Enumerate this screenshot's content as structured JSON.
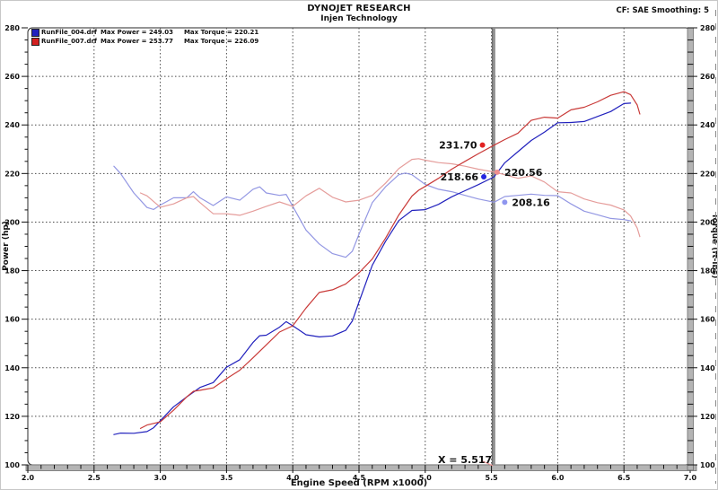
{
  "header": {
    "title": "DYNOJET RESEARCH",
    "subtitle": "Injen Technology",
    "settings": "CF: SAE  Smoothing: 5"
  },
  "legend": [
    {
      "file": "RunFile_004.drf",
      "max_power": "Max Power = 249.03",
      "max_torque": "Max Torque = 220.21",
      "color": "#2121bd"
    },
    {
      "file": "RunFile_007.drf",
      "max_power": "Max Power = 253.77",
      "max_torque": "Max Torque = 226.09",
      "color": "#d22020"
    }
  ],
  "cursor": {
    "x": 5.517,
    "label": "X = 5.517",
    "callout_color": "#f09090",
    "line_color": "#8f8f8f"
  },
  "chart_data": {
    "type": "line",
    "title": "DYNOJET RESEARCH",
    "subtitle": "Injen Technology",
    "xlabel": "Engine Speed (RPM x1000)",
    "ylabel_left": "Power (hp)",
    "ylabel_right": "Torque (ft-lbs)",
    "xlim": [
      2.0,
      7.0
    ],
    "ylim": [
      100,
      280
    ],
    "x_ticks": [
      2.0,
      2.5,
      3.0,
      3.5,
      4.0,
      4.5,
      5.0,
      5.5,
      6.0,
      6.5,
      7.0
    ],
    "y_ticks": [
      100,
      120,
      140,
      160,
      180,
      200,
      220,
      240,
      260,
      280
    ],
    "x_minor_step": 0.1,
    "y_minor_step": 5,
    "grid": "dotted",
    "legend_position": "top-left",
    "cursor_x": 5.517,
    "series": [
      {
        "name": "RunFile_004.drf Power (hp)",
        "axis": "left",
        "color": "#2121bd",
        "width": 1.2,
        "points": [
          [
            2.65,
            112.5
          ],
          [
            2.7,
            113.1
          ],
          [
            2.8,
            113.0
          ],
          [
            2.9,
            113.7
          ],
          [
            2.95,
            115.3
          ],
          [
            3.0,
            118.2
          ],
          [
            3.1,
            123.9
          ],
          [
            3.2,
            128.0
          ],
          [
            3.3,
            131.9
          ],
          [
            3.4,
            133.9
          ],
          [
            3.5,
            140.2
          ],
          [
            3.6,
            143.3
          ],
          [
            3.7,
            150.4
          ],
          [
            3.75,
            153.2
          ],
          [
            3.8,
            153.4
          ],
          [
            3.9,
            156.7
          ],
          [
            3.95,
            159.0
          ],
          [
            4.0,
            157.3
          ],
          [
            4.1,
            153.6
          ],
          [
            4.2,
            152.7
          ],
          [
            4.3,
            153.1
          ],
          [
            4.4,
            155.4
          ],
          [
            4.45,
            159.3
          ],
          [
            4.5,
            167.1
          ],
          [
            4.6,
            182.2
          ],
          [
            4.7,
            192.0
          ],
          [
            4.8,
            200.6
          ],
          [
            4.9,
            204.8
          ],
          [
            5.0,
            205.1
          ],
          [
            5.1,
            207.3
          ],
          [
            5.2,
            210.4
          ],
          [
            5.3,
            212.9
          ],
          [
            5.4,
            215.4
          ],
          [
            5.5,
            218.1
          ],
          [
            5.52,
            218.7
          ],
          [
            5.6,
            224.4
          ],
          [
            5.7,
            229.0
          ],
          [
            5.8,
            233.6
          ],
          [
            5.9,
            237.0
          ],
          [
            6.0,
            240.9
          ],
          [
            6.1,
            241.0
          ],
          [
            6.2,
            241.4
          ],
          [
            6.3,
            243.5
          ],
          [
            6.4,
            245.5
          ],
          [
            6.5,
            248.8
          ],
          [
            6.55,
            249.0
          ]
        ]
      },
      {
        "name": "RunFile_004.drf Torque (ft-lbs)",
        "axis": "right",
        "color": "#9397e3",
        "width": 1.2,
        "points": [
          [
            2.65,
            223.0
          ],
          [
            2.7,
            220.0
          ],
          [
            2.8,
            212.0
          ],
          [
            2.9,
            206.0
          ],
          [
            2.95,
            205.2
          ],
          [
            3.0,
            207.0
          ],
          [
            3.1,
            210.0
          ],
          [
            3.2,
            210.0
          ],
          [
            3.25,
            212.5
          ],
          [
            3.3,
            210.0
          ],
          [
            3.4,
            206.8
          ],
          [
            3.5,
            210.4
          ],
          [
            3.6,
            209.0
          ],
          [
            3.7,
            213.5
          ],
          [
            3.75,
            214.5
          ],
          [
            3.8,
            212.0
          ],
          [
            3.9,
            211.0
          ],
          [
            3.95,
            211.4
          ],
          [
            4.0,
            206.5
          ],
          [
            4.1,
            196.7
          ],
          [
            4.2,
            191.0
          ],
          [
            4.3,
            187.0
          ],
          [
            4.4,
            185.5
          ],
          [
            4.45,
            188.0
          ],
          [
            4.5,
            195.0
          ],
          [
            4.6,
            208.0
          ],
          [
            4.7,
            214.5
          ],
          [
            4.8,
            219.5
          ],
          [
            4.85,
            220.2
          ],
          [
            4.9,
            219.5
          ],
          [
            5.0,
            215.5
          ],
          [
            5.1,
            213.5
          ],
          [
            5.2,
            212.5
          ],
          [
            5.3,
            211.0
          ],
          [
            5.4,
            209.5
          ],
          [
            5.52,
            208.2
          ],
          [
            5.6,
            210.5
          ],
          [
            5.7,
            211.0
          ],
          [
            5.8,
            211.5
          ],
          [
            5.9,
            211.0
          ],
          [
            6.0,
            210.9
          ],
          [
            6.1,
            207.5
          ],
          [
            6.2,
            204.5
          ],
          [
            6.3,
            203.0
          ],
          [
            6.4,
            201.5
          ],
          [
            6.5,
            201.0
          ],
          [
            6.55,
            200.5
          ]
        ]
      },
      {
        "name": "RunFile_007.drf Power (hp)",
        "axis": "left",
        "color": "#c93a38",
        "width": 1.2,
        "points": [
          [
            2.85,
            115.0
          ],
          [
            2.9,
            116.4
          ],
          [
            3.0,
            117.7
          ],
          [
            3.1,
            122.5
          ],
          [
            3.2,
            128.0
          ],
          [
            3.25,
            130.3
          ],
          [
            3.3,
            130.7
          ],
          [
            3.4,
            131.7
          ],
          [
            3.5,
            135.5
          ],
          [
            3.6,
            139.0
          ],
          [
            3.7,
            144.1
          ],
          [
            3.8,
            149.4
          ],
          [
            3.9,
            154.7
          ],
          [
            4.0,
            157.3
          ],
          [
            4.1,
            164.6
          ],
          [
            4.2,
            171.0
          ],
          [
            4.3,
            172.1
          ],
          [
            4.4,
            174.5
          ],
          [
            4.5,
            179.1
          ],
          [
            4.6,
            184.8
          ],
          [
            4.7,
            193.3
          ],
          [
            4.8,
            202.9
          ],
          [
            4.9,
            210.7
          ],
          [
            4.95,
            213.1
          ],
          [
            5.0,
            214.7
          ],
          [
            5.1,
            218.0
          ],
          [
            5.2,
            221.8
          ],
          [
            5.3,
            225.0
          ],
          [
            5.4,
            228.1
          ],
          [
            5.52,
            231.7
          ],
          [
            5.6,
            234.0
          ],
          [
            5.7,
            236.6
          ],
          [
            5.8,
            241.9
          ],
          [
            5.9,
            243.2
          ],
          [
            6.0,
            242.8
          ],
          [
            6.1,
            246.2
          ],
          [
            6.2,
            247.3
          ],
          [
            6.3,
            249.5
          ],
          [
            6.4,
            252.2
          ],
          [
            6.5,
            253.7
          ],
          [
            6.55,
            252.5
          ],
          [
            6.6,
            248.2
          ],
          [
            6.62,
            244.5
          ]
        ]
      },
      {
        "name": "RunFile_007.drf Torque (ft-lbs)",
        "axis": "right",
        "color": "#e59d9b",
        "width": 1.2,
        "points": [
          [
            2.85,
            212.0
          ],
          [
            2.9,
            210.8
          ],
          [
            3.0,
            206.1
          ],
          [
            3.1,
            207.5
          ],
          [
            3.2,
            210.0
          ],
          [
            3.25,
            210.5
          ],
          [
            3.3,
            208.0
          ],
          [
            3.4,
            203.4
          ],
          [
            3.5,
            203.4
          ],
          [
            3.6,
            202.8
          ],
          [
            3.7,
            204.5
          ],
          [
            3.8,
            206.5
          ],
          [
            3.9,
            208.3
          ],
          [
            4.0,
            206.5
          ],
          [
            4.1,
            210.8
          ],
          [
            4.2,
            213.9
          ],
          [
            4.3,
            210.2
          ],
          [
            4.4,
            208.3
          ],
          [
            4.5,
            209.0
          ],
          [
            4.6,
            211.0
          ],
          [
            4.7,
            216.0
          ],
          [
            4.8,
            222.0
          ],
          [
            4.9,
            225.8
          ],
          [
            4.95,
            226.1
          ],
          [
            5.0,
            225.5
          ],
          [
            5.1,
            224.5
          ],
          [
            5.2,
            224.0
          ],
          [
            5.3,
            223.0
          ],
          [
            5.4,
            221.8
          ],
          [
            5.52,
            220.6
          ],
          [
            5.6,
            219.5
          ],
          [
            5.7,
            218.0
          ],
          [
            5.8,
            219.0
          ],
          [
            5.9,
            216.5
          ],
          [
            6.0,
            212.5
          ],
          [
            6.1,
            212.0
          ],
          [
            6.2,
            209.5
          ],
          [
            6.3,
            208.0
          ],
          [
            6.4,
            207.0
          ],
          [
            6.5,
            205.0
          ],
          [
            6.55,
            202.5
          ],
          [
            6.6,
            197.5
          ],
          [
            6.62,
            194.0
          ]
        ]
      }
    ],
    "annotations": [
      {
        "text": "231.70",
        "value": 231.7,
        "dot_x": 5.432,
        "dot_color": "#e22222",
        "side": "left"
      },
      {
        "text": "218.66",
        "value": 218.66,
        "dot_x": 5.442,
        "dot_color": "#2525e0",
        "side": "left"
      },
      {
        "text": "220.56",
        "value": 220.56,
        "dot_x": 5.543,
        "dot_color": "#ef8f8f",
        "side": "right"
      },
      {
        "text": "208.16",
        "value": 208.16,
        "dot_x": 5.6,
        "dot_color": "#8f96ef",
        "side": "right"
      }
    ]
  }
}
